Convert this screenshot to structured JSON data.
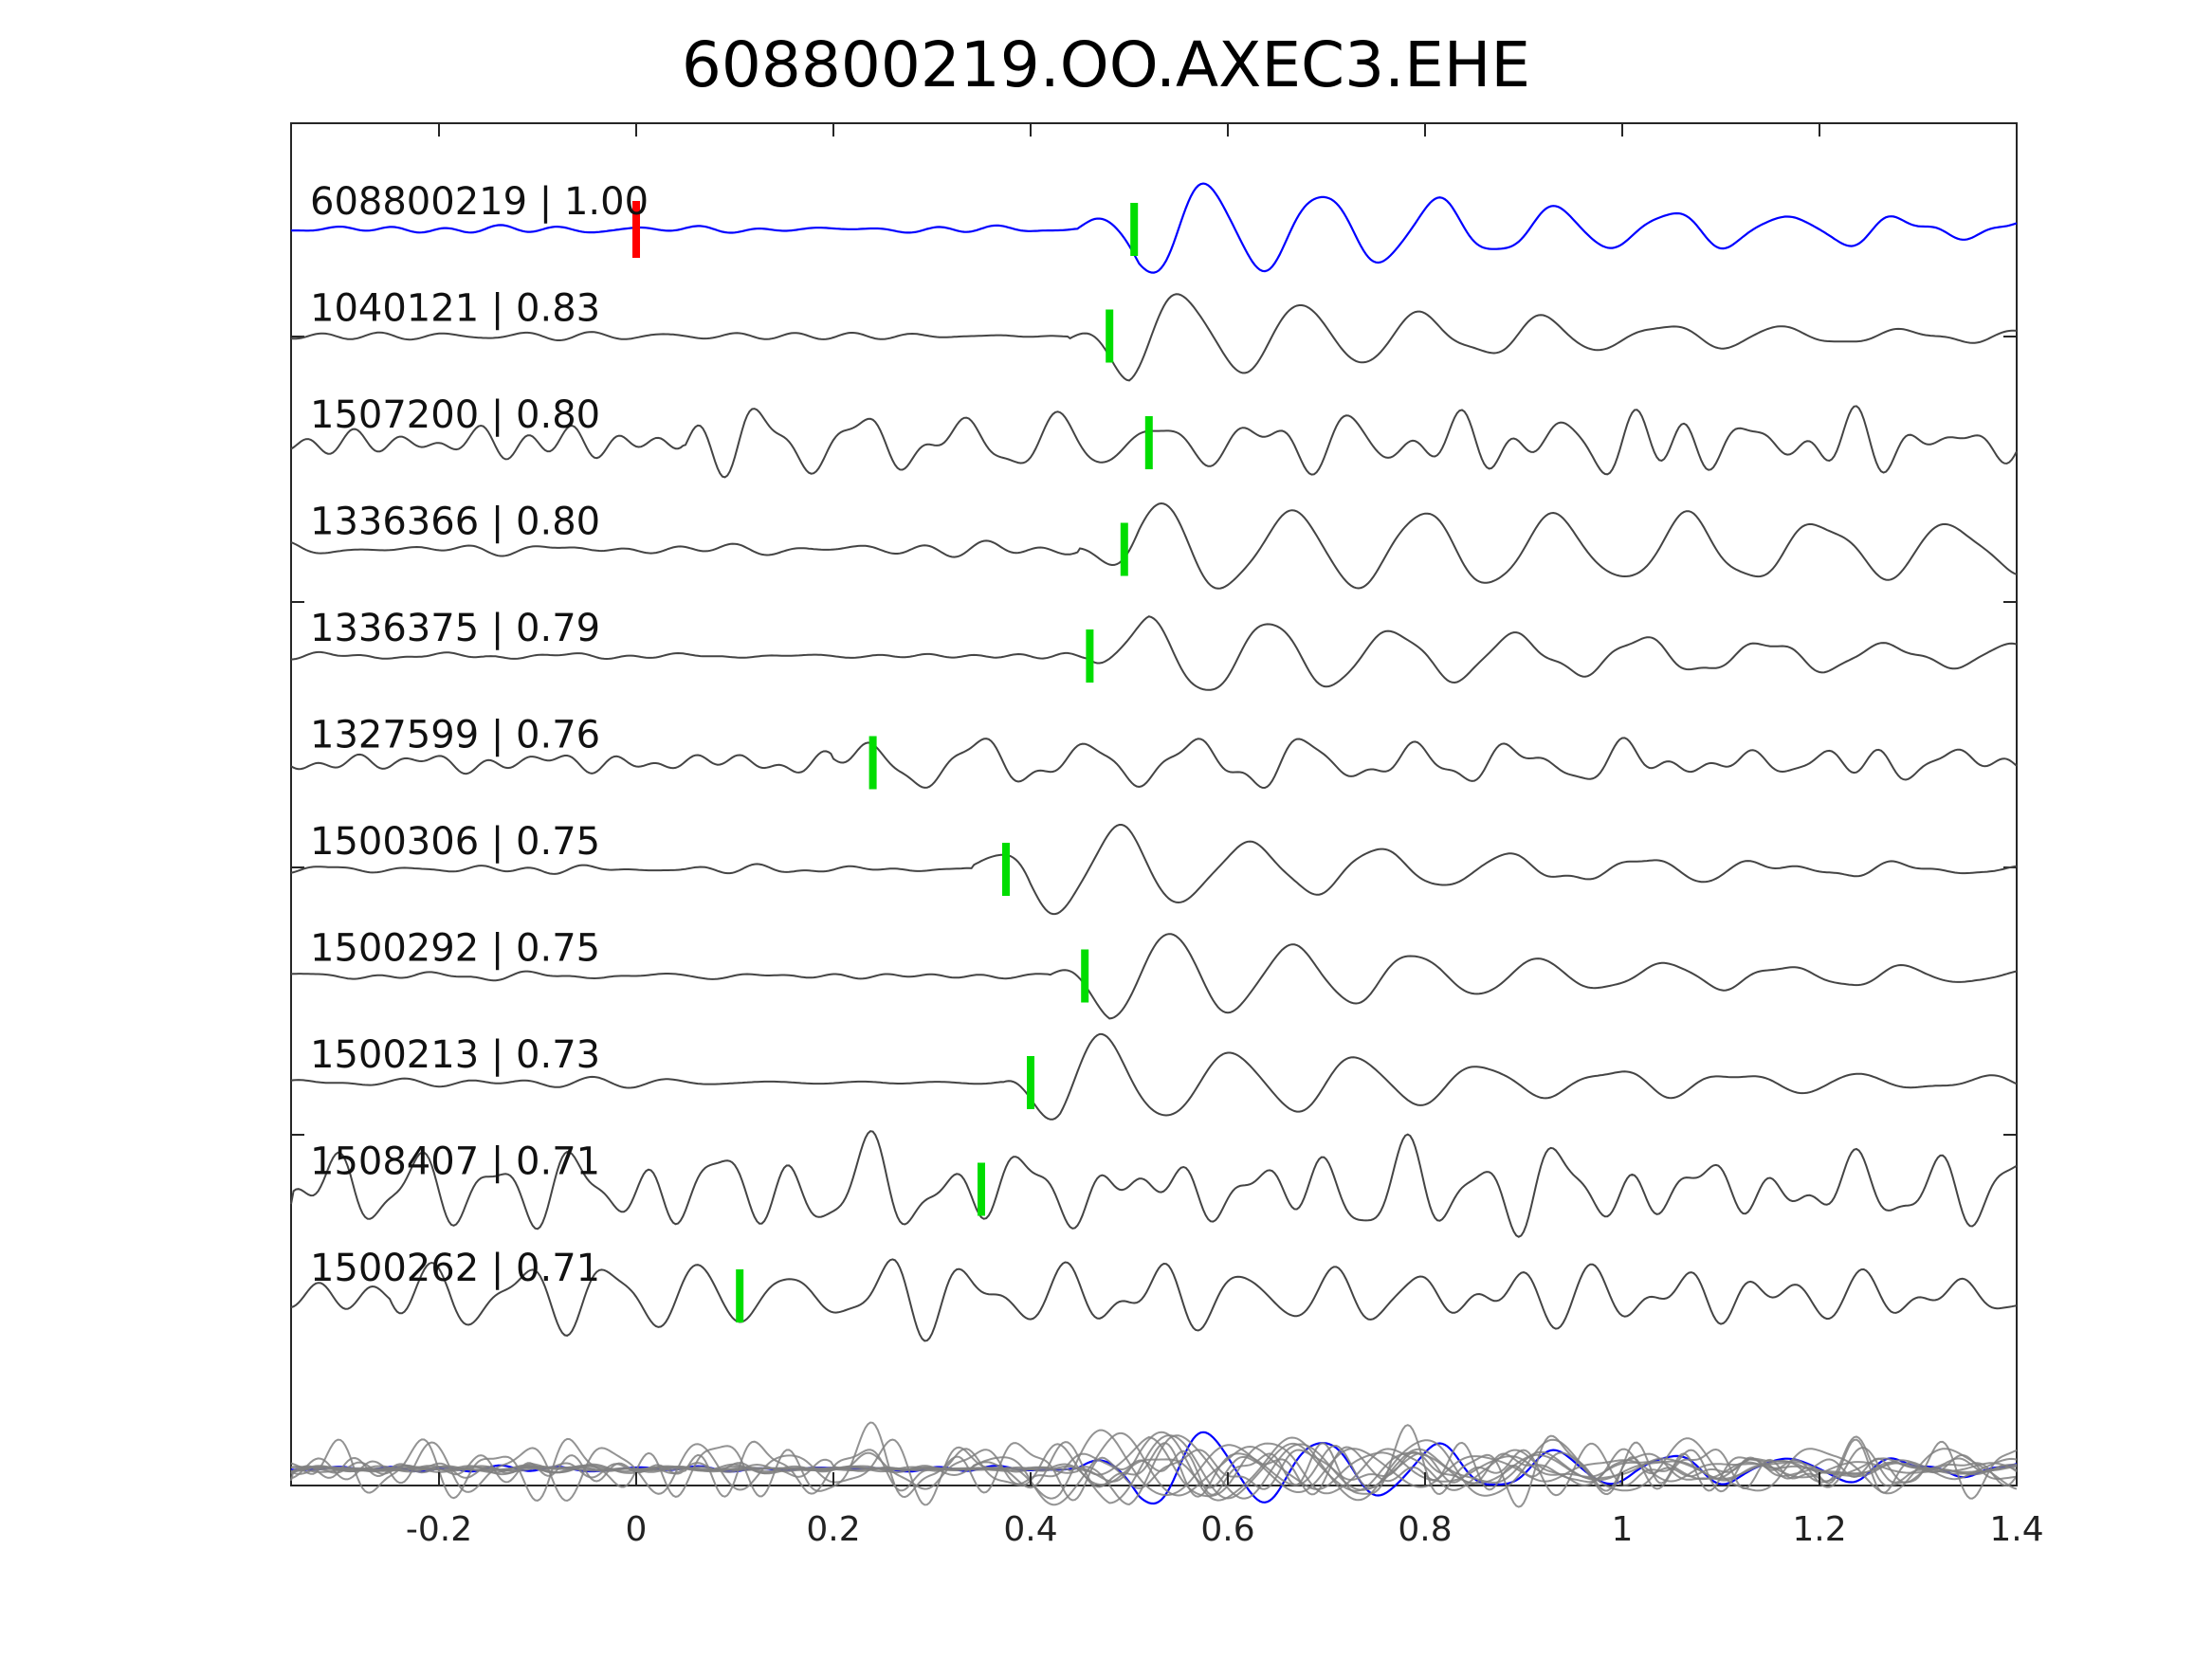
{
  "chart_data": {
    "type": "line",
    "title": "608800219.OO.AXEC3.EHE",
    "xlabel": "",
    "ylabel": "",
    "xlim": [
      -0.35,
      1.4
    ],
    "x_ticks": [
      -0.2,
      0,
      0.2,
      0.4,
      0.6,
      0.8,
      1,
      1.2,
      1.4
    ],
    "x_tick_labels": [
      "-0.2",
      "0",
      "0.2",
      "0.4",
      "0.6",
      "0.8",
      "1",
      "1.2",
      "1.4"
    ],
    "grid": false,
    "colors": {
      "template": "#0000ff",
      "trace": "#444444",
      "stack": "#808080",
      "origin_pick": "#ff0000",
      "arrival_pick": "#00dd00"
    },
    "origin_pick_time": 0,
    "series": [
      {
        "name": "608800219 | 1.00",
        "pick": 0.505,
        "onset": 0.45,
        "amp": 0.45,
        "freq": 8.5,
        "noise": 0.05,
        "decay": 2.0,
        "seed": 1,
        "color": "template"
      },
      {
        "name": "1040121 | 0.83",
        "pick": 0.48,
        "onset": 0.44,
        "amp": 0.42,
        "freq": 8.2,
        "noise": 0.06,
        "decay": 2.6,
        "seed": 2
      },
      {
        "name": "1507200 | 0.80",
        "pick": 0.52,
        "onset": 0.05,
        "amp": 0.2,
        "freq": 10.0,
        "noise": 0.2,
        "decay": 0.8,
        "seed": 3
      },
      {
        "name": "1336366 | 0.80",
        "pick": 0.495,
        "onset": 0.45,
        "amp": 0.38,
        "freq": 7.5,
        "noise": 0.08,
        "decay": 0.6,
        "seed": 4
      },
      {
        "name": "1336375 | 0.79",
        "pick": 0.46,
        "onset": 0.46,
        "amp": 0.38,
        "freq": 8.0,
        "noise": 0.05,
        "decay": 1.8,
        "seed": 5
      },
      {
        "name": "1327599 | 0.76",
        "pick": 0.24,
        "onset": 0.2,
        "amp": 0.24,
        "freq": 9.0,
        "noise": 0.14,
        "decay": 1.2,
        "seed": 6
      },
      {
        "name": "1500306 | 0.75",
        "pick": 0.375,
        "onset": 0.34,
        "amp": 0.42,
        "freq": 7.6,
        "noise": 0.06,
        "decay": 2.6,
        "seed": 7
      },
      {
        "name": "1500292 | 0.75",
        "pick": 0.455,
        "onset": 0.42,
        "amp": 0.4,
        "freq": 8.0,
        "noise": 0.05,
        "decay": 2.4,
        "seed": 8
      },
      {
        "name": "1500213 | 0.73",
        "pick": 0.4,
        "onset": 0.37,
        "amp": 0.42,
        "freq": 7.8,
        "noise": 0.05,
        "decay": 2.4,
        "seed": 9
      },
      {
        "name": "1508407 | 0.71",
        "pick": 0.35,
        "onset": -0.35,
        "amp": 0.3,
        "freq": 13.0,
        "noise": 0.3,
        "decay": 0.3,
        "seed": 10
      },
      {
        "name": "1500262 | 0.71",
        "pick": 0.105,
        "onset": -0.25,
        "amp": 0.28,
        "freq": 11.0,
        "noise": 0.22,
        "decay": 0.5,
        "seed": 11
      }
    ]
  }
}
